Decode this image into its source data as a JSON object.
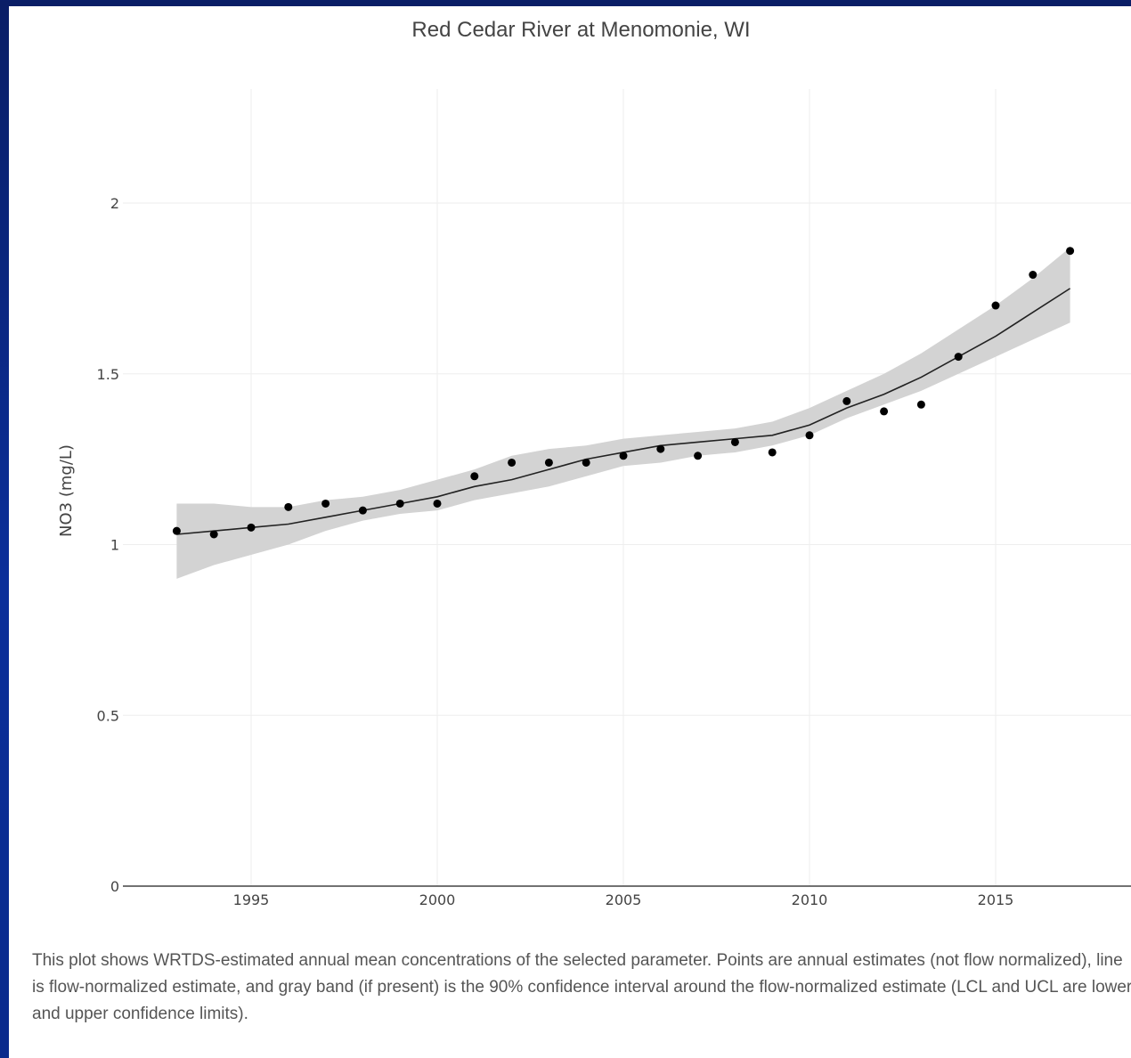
{
  "chart_data": {
    "type": "line",
    "title": "Red Cedar River at Menomonie, WI",
    "xlabel": "",
    "ylabel": "NO3 (mg/L)",
    "xlim": [
      1991.3,
      2018.5
    ],
    "ylim": [
      0,
      2.3
    ],
    "x_ticks": [
      "1995",
      "2000",
      "2005",
      "2010",
      "2015"
    ],
    "y_ticks": [
      "0",
      "0.5",
      "1",
      "1.5",
      "2"
    ],
    "grid": true,
    "x": [
      1993,
      1994,
      1995,
      1996,
      1997,
      1998,
      1999,
      2000,
      2001,
      2002,
      2003,
      2004,
      2005,
      2006,
      2007,
      2008,
      2009,
      2010,
      2011,
      2012,
      2013,
      2014,
      2015,
      2016,
      2017
    ],
    "series": [
      {
        "name": "Annual estimates",
        "kind": "scatter",
        "color": "#000000",
        "values": [
          1.04,
          1.03,
          1.05,
          1.11,
          1.12,
          1.1,
          1.12,
          1.12,
          1.2,
          1.24,
          1.24,
          1.24,
          1.26,
          1.28,
          1.26,
          1.3,
          1.27,
          1.32,
          1.42,
          1.39,
          1.41,
          1.55,
          1.7,
          1.79,
          1.86
        ]
      },
      {
        "name": "Flow-normalized estimate",
        "kind": "line",
        "color": "#222222",
        "values": [
          1.03,
          1.04,
          1.05,
          1.06,
          1.08,
          1.1,
          1.12,
          1.14,
          1.17,
          1.19,
          1.22,
          1.25,
          1.27,
          1.29,
          1.3,
          1.31,
          1.32,
          1.35,
          1.4,
          1.44,
          1.49,
          1.55,
          1.61,
          1.68,
          1.75
        ]
      },
      {
        "name": "LCL",
        "kind": "band-lower",
        "color": "#d3d3d3",
        "values": [
          0.9,
          0.94,
          0.97,
          1.0,
          1.04,
          1.07,
          1.09,
          1.1,
          1.13,
          1.15,
          1.17,
          1.2,
          1.23,
          1.24,
          1.26,
          1.27,
          1.29,
          1.32,
          1.37,
          1.41,
          1.45,
          1.5,
          1.55,
          1.6,
          1.65
        ]
      },
      {
        "name": "UCL",
        "kind": "band-upper",
        "color": "#d3d3d3",
        "values": [
          1.12,
          1.12,
          1.11,
          1.11,
          1.13,
          1.14,
          1.16,
          1.19,
          1.22,
          1.26,
          1.28,
          1.29,
          1.31,
          1.32,
          1.33,
          1.34,
          1.36,
          1.4,
          1.45,
          1.5,
          1.56,
          1.63,
          1.7,
          1.78,
          1.87
        ]
      }
    ]
  },
  "caption": "This plot shows WRTDS-estimated annual mean concentrations of the selected parameter. Points are annual estimates (not flow normalized), line is flow-normalized estimate, and gray band (if present) is the 90% confidence interval around the flow-normalized estimate (LCL and UCL are lower and upper confidence limits)."
}
